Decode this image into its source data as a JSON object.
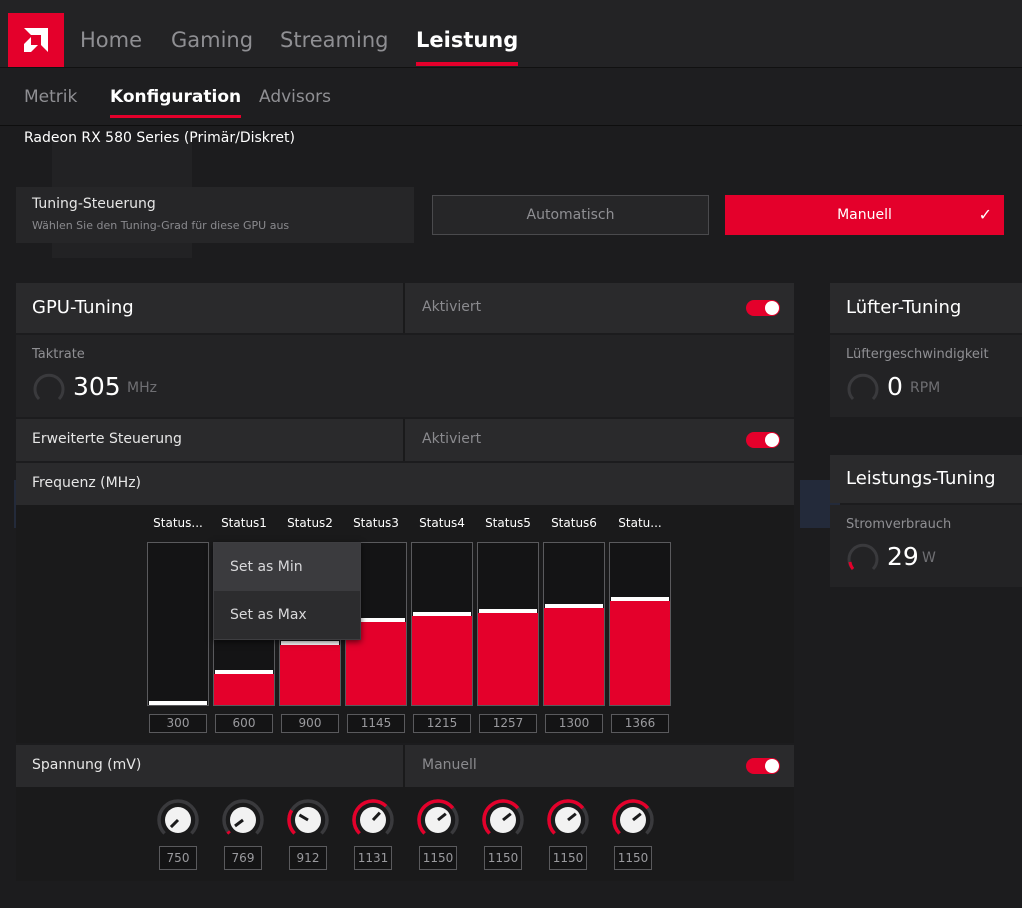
{
  "nav": {
    "items": [
      "Home",
      "Gaming",
      "Streaming",
      "Leistung"
    ],
    "active": "Leistung"
  },
  "subnav": {
    "items": [
      "Metrik",
      "Konfiguration",
      "Advisors"
    ],
    "active": "Konfiguration"
  },
  "gpu_name": "Radeon RX 580 Series (Primär/Diskret)",
  "tuning_control": {
    "title": "Tuning-Steuerung",
    "subtitle": "Wählen Sie den Tuning-Grad für diese GPU aus",
    "auto_label": "Automatisch",
    "manual_label": "Manuell",
    "selected": "Manuell"
  },
  "gpu_tuning": {
    "title": "GPU-Tuning",
    "status": "Aktiviert",
    "enabled": true,
    "clock_label": "Taktrate",
    "clock_value": "305",
    "clock_unit": "MHz"
  },
  "advanced": {
    "label": "Erweiterte Steuerung",
    "status": "Aktiviert",
    "enabled": true
  },
  "frequency": {
    "label": "Frequenz (MHz)",
    "states": [
      "Status...",
      "Status1",
      "Status2",
      "Status3",
      "Status4",
      "Status5",
      "Status6",
      "Statu..."
    ],
    "values": [
      "300",
      "600",
      "900",
      "1145",
      "1215",
      "1257",
      "1300",
      "1366"
    ],
    "fill_fraction": [
      0.0,
      0.19,
      0.37,
      0.51,
      0.55,
      0.57,
      0.6,
      0.64
    ]
  },
  "context_menu": {
    "items": [
      "Set as Min",
      "Set as Max"
    ],
    "hovered": "Set as Min"
  },
  "voltage": {
    "label": "Spannung (mV)",
    "mode": "Manuell",
    "enabled": true,
    "values": [
      "750",
      "769",
      "912",
      "1131",
      "1150",
      "1150",
      "1150",
      "1150"
    ],
    "knob_level": [
      0.0,
      0.03,
      0.28,
      0.66,
      0.69,
      0.69,
      0.69,
      0.69
    ]
  },
  "fan_tuning": {
    "title": "Lüfter-Tuning",
    "label": "Lüftergeschwindigkeit",
    "value": "0",
    "unit": "RPM"
  },
  "power_tuning": {
    "title": "Leistungs-Tuning",
    "label": "Stromverbrauch",
    "value": "29",
    "unit": "W"
  },
  "colors": {
    "accent": "#e4002b",
    "background": "#1c1c1e",
    "panel": "#2a2a2c"
  }
}
